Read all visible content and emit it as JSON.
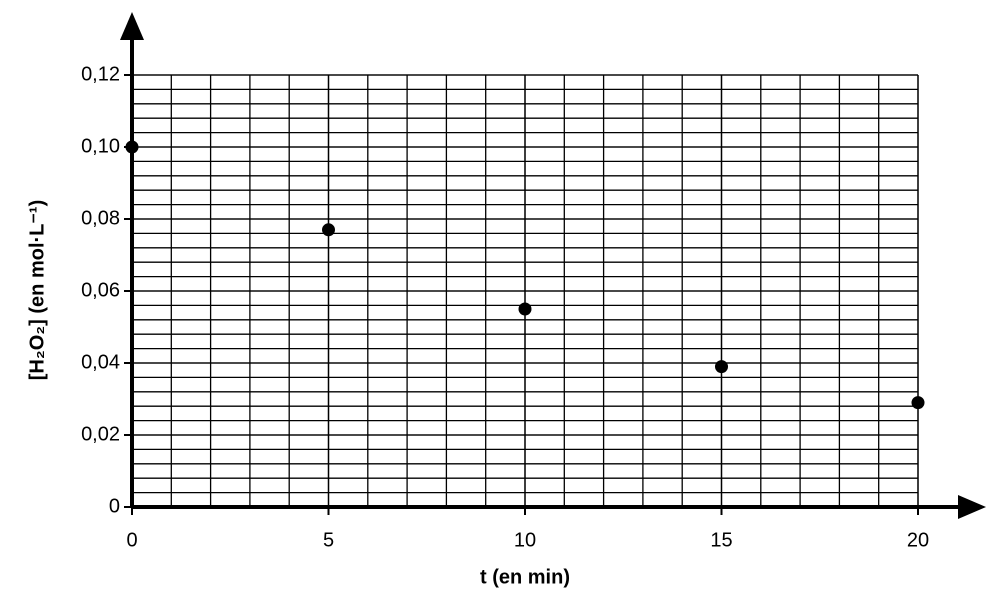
{
  "chart_data": {
    "type": "scatter",
    "x_label": "t (en min)",
    "y_label": "[H₂O₂] (en mol·L⁻¹)",
    "series": [
      {
        "color": "#000000",
        "x": [
          0,
          5,
          10,
          15,
          20
        ],
        "values": [
          0.1,
          0.077,
          0.055,
          0.039,
          0.029
        ]
      }
    ],
    "xlim": [
      0,
      20
    ],
    "ylim": [
      0,
      0.12
    ],
    "xticks": [
      0,
      5,
      10,
      15,
      20
    ],
    "yticks": [
      0,
      {
        "value": 0.02,
        "label": "0,02"
      },
      {
        "value": 0.04,
        "label": "0,04"
      },
      {
        "value": 0.06,
        "label": "0,06"
      },
      {
        "value": 0.08,
        "label": "0,08"
      },
      {
        "value": 0.1,
        "label": "0,10"
      },
      {
        "value": 0.12,
        "label": "0,12"
      }
    ],
    "grid": true,
    "minor_grid_step": {
      "x": 1,
      "y": 0.004
    }
  }
}
